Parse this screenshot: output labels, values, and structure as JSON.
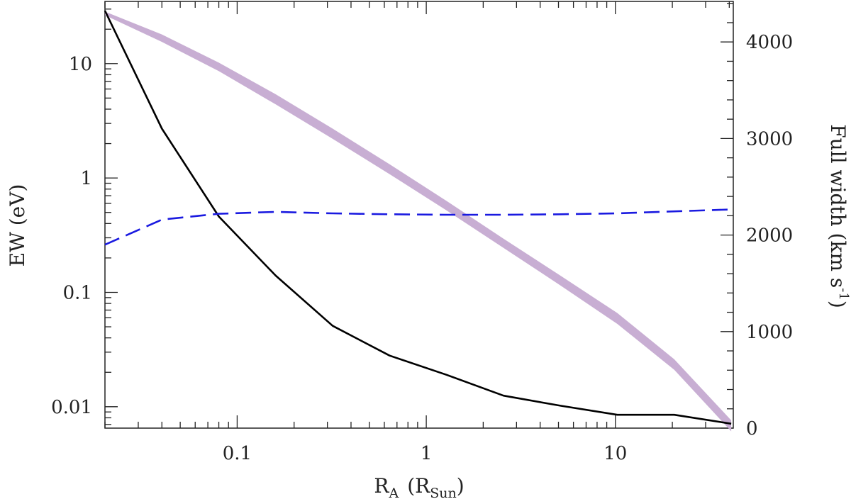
{
  "chart_data": {
    "type": "line",
    "xlabel": "R",
    "xlabel_sub": "A",
    "xlabel_open": "(R",
    "xlabel_unit_sub": "Sun",
    "xlabel_close": ")",
    "ylabel_left": "EW (eV)",
    "ylabel_right": "Full width (km s",
    "ylabel_right_sup": "-1",
    "ylabel_right_close": ")",
    "x_scale": "log",
    "y_left_scale": "log",
    "y_right_scale": "linear",
    "xlim": [
      0.02,
      42
    ],
    "ylim_left": [
      0.0065,
      35
    ],
    "ylim_right": [
      0,
      4420
    ],
    "x_ticks": [
      0.1,
      1,
      10
    ],
    "x_tick_labels": [
      "0.1",
      "1",
      "10"
    ],
    "y_left_ticks": [
      0.01,
      0.1,
      1,
      10
    ],
    "y_left_tick_labels": [
      "0.01",
      "0.1",
      "1",
      "10"
    ],
    "y_right_ticks": [
      0,
      1000,
      2000,
      3000,
      4000
    ],
    "y_right_tick_labels": [
      "0",
      "1000",
      "2000",
      "3000",
      "4000"
    ],
    "grid": false,
    "series": [
      {
        "axis": "left",
        "style": "solid",
        "color": "#000000",
        "x": [
          0.02,
          0.04,
          0.08,
          0.16,
          0.32,
          0.64,
          1.28,
          2.56,
          5.12,
          10.24,
          20.48,
          40.96
        ],
        "y": [
          29,
          2.7,
          0.46,
          0.14,
          0.051,
          0.028,
          0.019,
          0.0125,
          0.0102,
          0.0085,
          0.0085,
          0.0071
        ]
      },
      {
        "axis": "right",
        "style": "dashed",
        "color": "#1a1ae0",
        "x": [
          0.02,
          0.04,
          0.08,
          0.16,
          0.32,
          0.64,
          1.28,
          2.56,
          5.12,
          10.24,
          20.48,
          40.96
        ],
        "y": [
          1900,
          2160,
          2220,
          2240,
          2225,
          2215,
          2210,
          2210,
          2215,
          2225,
          2245,
          2265
        ]
      },
      {
        "axis": "left",
        "style": "band",
        "color": "#c8aed3",
        "x": [
          0.02,
          0.04,
          0.08,
          0.16,
          0.32,
          0.64,
          1.28,
          2.56,
          5.12,
          10.24,
          20.48,
          40.96
        ],
        "y_low": [
          26.5,
          15.5,
          8.6,
          4.4,
          2.2,
          1.08,
          0.52,
          0.245,
          0.115,
          0.053,
          0.021,
          0.0061
        ],
        "y_high": [
          28.5,
          18.0,
          10.2,
          5.4,
          2.7,
          1.32,
          0.63,
          0.295,
          0.14,
          0.066,
          0.026,
          0.0076
        ]
      }
    ]
  }
}
